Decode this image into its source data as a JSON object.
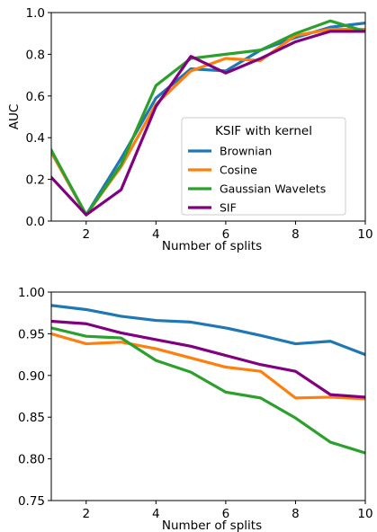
{
  "chart_data": [
    {
      "type": "line",
      "xlabel": "Number of splits",
      "ylabel": "AUC",
      "xlim": [
        1,
        10
      ],
      "ylim": [
        0.0,
        1.0
      ],
      "xticks": [
        2,
        4,
        6,
        8,
        10
      ],
      "yticks": [
        0.0,
        0.2,
        0.4,
        0.6,
        0.8,
        1.0
      ],
      "ytick_labels": [
        "0.0",
        "0.2",
        "0.4",
        "0.6",
        "0.8",
        "1.0"
      ],
      "grid": false,
      "legend": {
        "title": "KSIF with kernel",
        "placement": "lower-right"
      },
      "x": [
        1,
        2,
        3,
        4,
        5,
        6,
        7,
        8,
        9,
        10
      ],
      "series": [
        {
          "name": "Brownian",
          "color": "#1f77b4",
          "values": [
            0.33,
            0.03,
            0.3,
            0.59,
            0.73,
            0.72,
            0.82,
            0.88,
            0.93,
            0.95
          ]
        },
        {
          "name": "Cosine",
          "color": "#ff7f0e",
          "values": [
            0.33,
            0.03,
            0.26,
            0.56,
            0.72,
            0.78,
            0.77,
            0.89,
            0.92,
            0.92
          ]
        },
        {
          "name": "Gaussian Wavelets",
          "color": "#2ca02c",
          "values": [
            0.34,
            0.03,
            0.27,
            0.65,
            0.78,
            0.8,
            0.82,
            0.9,
            0.96,
            0.91
          ]
        },
        {
          "name": "SIF",
          "color": "#800080",
          "values": [
            0.21,
            0.03,
            0.15,
            0.55,
            0.79,
            0.71,
            0.78,
            0.86,
            0.91,
            0.91
          ]
        }
      ]
    },
    {
      "type": "line",
      "xlabel": "Number of splits",
      "ylabel": "",
      "xlim": [
        1,
        10
      ],
      "ylim": [
        0.75,
        1.0
      ],
      "xticks": [
        2,
        4,
        6,
        8,
        10
      ],
      "yticks": [
        0.75,
        0.8,
        0.85,
        0.9,
        0.95,
        1.0
      ],
      "ytick_labels": [
        "0.75",
        "0.80",
        "0.85",
        "0.90",
        "0.95",
        "1.00"
      ],
      "grid": false,
      "x": [
        1,
        2,
        3,
        4,
        5,
        6,
        7,
        8,
        9,
        10
      ],
      "series": [
        {
          "color": "#1f77b4",
          "values": [
            0.984,
            0.979,
            0.971,
            0.966,
            0.964,
            0.957,
            0.948,
            0.938,
            0.941,
            0.925
          ]
        },
        {
          "color": "#ff7f0e",
          "values": [
            0.95,
            0.938,
            0.94,
            0.932,
            0.921,
            0.91,
            0.905,
            0.873,
            0.874,
            0.872
          ]
        },
        {
          "color": "#2ca02c",
          "values": [
            0.957,
            0.947,
            0.945,
            0.918,
            0.904,
            0.88,
            0.873,
            0.849,
            0.82,
            0.807
          ]
        },
        {
          "color": "#800080",
          "values": [
            0.965,
            0.962,
            0.951,
            0.943,
            0.935,
            0.924,
            0.913,
            0.905,
            0.877,
            0.874
          ]
        }
      ]
    }
  ]
}
